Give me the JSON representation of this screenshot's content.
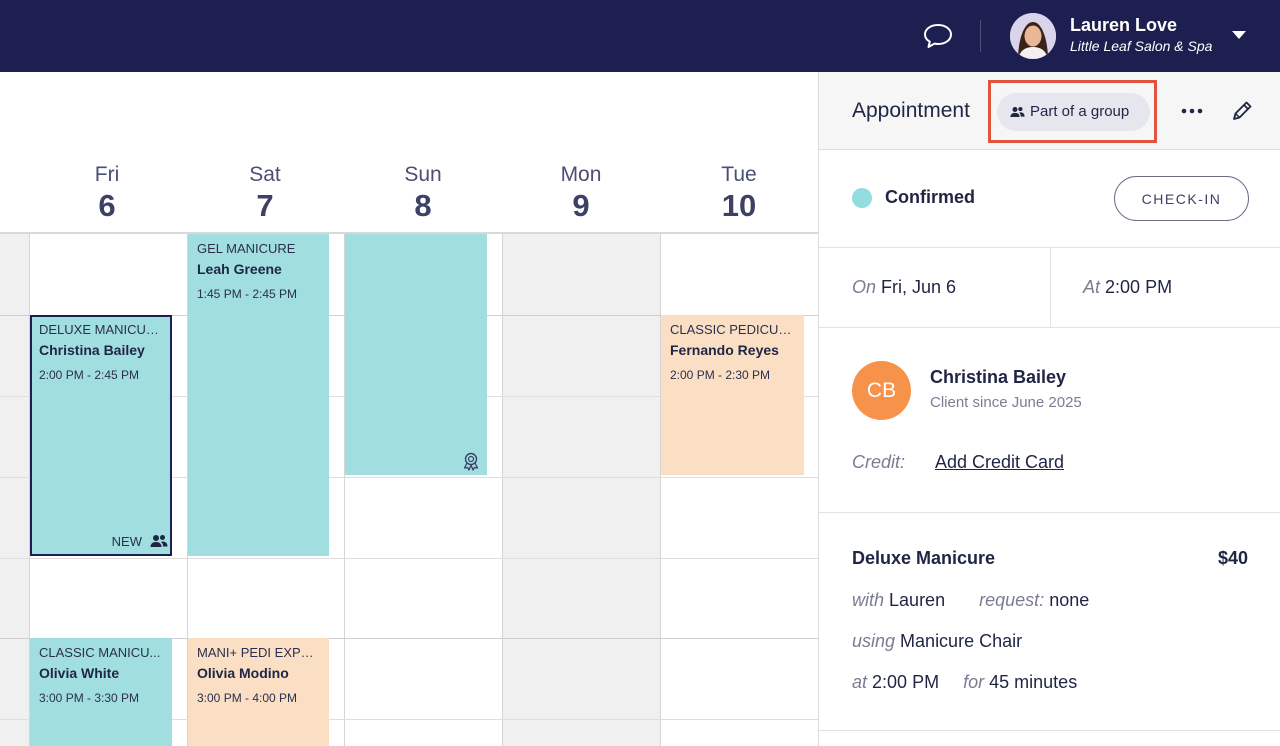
{
  "header": {
    "user_name": "Lauren Love",
    "business_name": "Little Leaf Salon & Spa",
    "icons": [
      "chat-icon",
      "chevron-down-icon"
    ]
  },
  "calendar": {
    "days": [
      {
        "name": "Fri",
        "num": "6"
      },
      {
        "name": "Sat",
        "num": "7"
      },
      {
        "name": "Sun",
        "num": "8"
      },
      {
        "name": "Mon",
        "num": "9"
      },
      {
        "name": "Tue",
        "num": "10"
      }
    ],
    "appointments": [
      {
        "service": "DELUXE MANICURE",
        "client": "Christina Bailey",
        "time": "2:00 PM - 2:45 PM",
        "tag": "NEW",
        "color": "#a1dee0"
      },
      {
        "service": "GEL MANICURE",
        "client": "Leah Greene",
        "time": "1:45 PM - 2:45 PM",
        "color": "#a1dee0"
      },
      {
        "service": "CLASSIC PEDICURE",
        "client": "Fernando Reyes",
        "time": "2:00 PM - 2:30 PM",
        "color": "#fadfc4"
      },
      {
        "service": "CLASSIC MANICU...",
        "client": "Olivia White",
        "time": "3:00 PM - 3:30 PM",
        "color": "#a1dee0"
      },
      {
        "service": "MANI+ PEDI EXPR...",
        "client": "Olivia Modino",
        "time": "3:00 PM - 4:00 PM",
        "color": "#fadfc4"
      }
    ]
  },
  "panel": {
    "title": "Appointment",
    "group_label": "Part of a group",
    "status": "Confirmed",
    "status_color": "#93dcdf",
    "checkin_label": "CHECK-IN",
    "on_label": "On",
    "date": "Fri, Jun 6",
    "at_label": "At",
    "time": "2:00 PM",
    "client": {
      "initials": "CB",
      "name": "Christina Bailey",
      "since": "Client since June 2025",
      "avatar_color": "#f7924a"
    },
    "credit_label": "Credit:",
    "credit_link": "Add Credit Card",
    "service": {
      "name": "Deluxe Manicure",
      "price": "$40",
      "with_label": "with",
      "with_value": "Lauren",
      "request_label": "request:",
      "request_value": "none",
      "using_label": "using",
      "using_value": "Manicure Chair",
      "at_label": "at",
      "at_value": "2:00 PM",
      "for_label": "for",
      "for_value": "45 minutes"
    }
  },
  "colors": {
    "navbar": "#1c1f4f",
    "highlight_border": "#e0533f"
  }
}
